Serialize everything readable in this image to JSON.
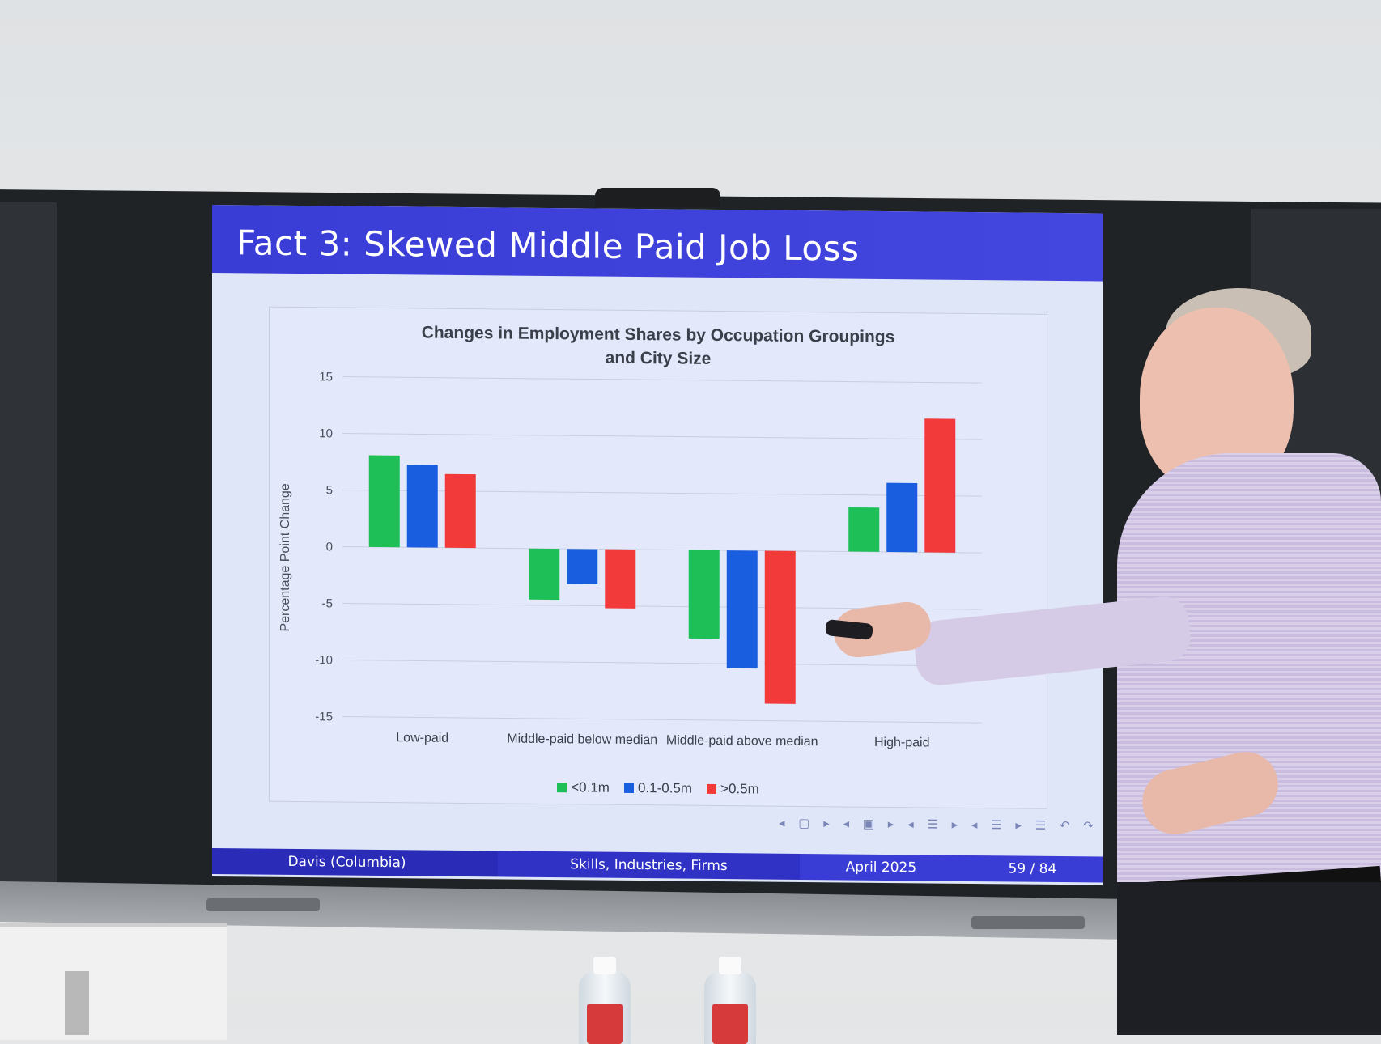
{
  "slide": {
    "title": "Fact 3: Skewed Middle Paid Job Loss",
    "footer": {
      "author": "Davis (Columbia)",
      "talk_title": "Skills, Industries, Firms",
      "date": "April 2025",
      "page": "59 / 84"
    },
    "nav_icons": "◂ ▢ ▸ ◂ ▣ ▸ ◂ ☰ ▸ ◂ ☰ ▸ ☰ ↶ ↷"
  },
  "chart_data": {
    "type": "bar",
    "title_line1": "Changes in Employment Shares by Occupation Groupings",
    "title_line2": "and City Size",
    "ylabel": "Percentage Point Change",
    "xlabel": "",
    "ylim": [
      -15,
      15
    ],
    "yticks": [
      15,
      10,
      5,
      0,
      -5,
      -10,
      -15
    ],
    "categories": [
      "Low-paid",
      "Middle-paid below median",
      "Middle-paid above median",
      "High-paid"
    ],
    "series": [
      {
        "name": "<0.1m",
        "color": "#1fbf57",
        "values": [
          8.1,
          -4.5,
          -7.8,
          3.9
        ]
      },
      {
        "name": "0.1-0.5m",
        "color": "#1a5ee0",
        "values": [
          7.3,
          -3.1,
          -10.4,
          6.1
        ]
      },
      {
        "name": ">0.5m",
        "color": "#f23a3a",
        "values": [
          6.5,
          -5.2,
          -13.5,
          11.8
        ]
      }
    ],
    "grid": true,
    "legend_position": "bottom"
  }
}
